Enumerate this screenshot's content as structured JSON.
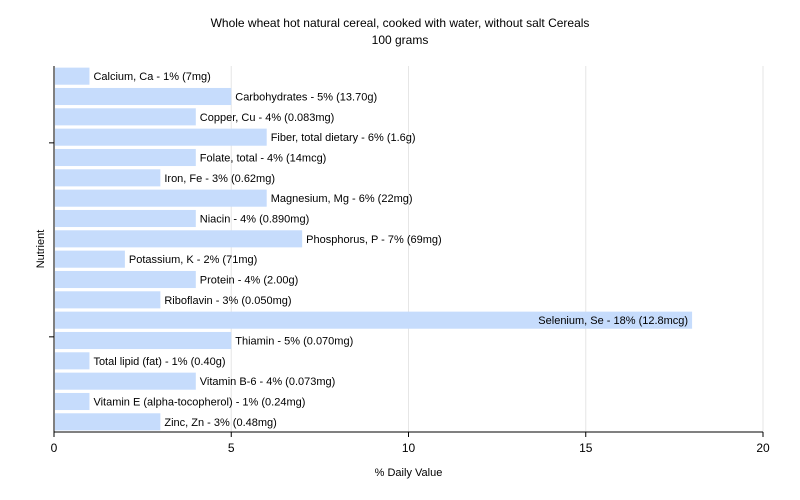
{
  "chart_data": {
    "type": "bar",
    "orientation": "horizontal",
    "title": "Whole wheat hot natural cereal, cooked with water, without salt Cereals",
    "subtitle": "100 grams",
    "xlabel": "% Daily Value",
    "ylabel": "Nutrient",
    "xlim": [
      0,
      20
    ],
    "xticks": [
      0,
      5,
      10,
      15,
      20
    ],
    "grid": true,
    "legend": "none",
    "bar_color": "#c6dcfc",
    "categories": [
      "Calcium, Ca",
      "Carbohydrates",
      "Copper, Cu",
      "Fiber, total dietary",
      "Folate, total",
      "Iron, Fe",
      "Magnesium, Mg",
      "Niacin",
      "Phosphorus, P",
      "Potassium, K",
      "Protein",
      "Riboflavin",
      "Selenium, Se",
      "Thiamin",
      "Total lipid (fat)",
      "Vitamin B-6",
      "Vitamin E (alpha-tocopherol)",
      "Zinc, Zn"
    ],
    "values": [
      1,
      5,
      4,
      6,
      4,
      3,
      6,
      4,
      7,
      2,
      4,
      3,
      18,
      5,
      1,
      4,
      1,
      3
    ],
    "labels": [
      "Calcium, Ca - 1% (7mg)",
      "Carbohydrates - 5% (13.70g)",
      "Copper, Cu - 4% (0.083mg)",
      "Fiber, total dietary - 6% (1.6g)",
      "Folate, total - 4% (14mcg)",
      "Iron, Fe - 3% (0.62mg)",
      "Magnesium, Mg - 6% (22mg)",
      "Niacin - 4% (0.890mg)",
      "Phosphorus, P - 7% (69mg)",
      "Potassium, K - 2% (71mg)",
      "Protein - 4% (2.00g)",
      "Riboflavin - 3% (0.050mg)",
      "Selenium, Se - 18% (12.8mcg)",
      "Thiamin - 5% (0.070mg)",
      "Total lipid (fat) - 1% (0.40g)",
      "Vitamin B-6 - 4% (0.073mg)",
      "Vitamin E (alpha-tocopherol) - 1% (0.24mg)",
      "Zinc, Zn - 3% (0.48mg)"
    ]
  }
}
